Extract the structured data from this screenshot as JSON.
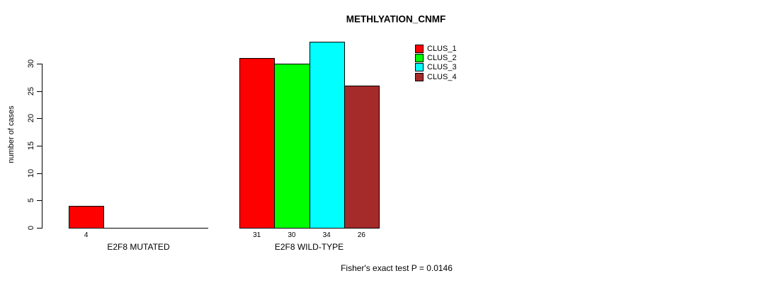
{
  "chart_data": {
    "type": "bar",
    "title": "METHLYATION_CNMF",
    "ylabel": "number of cases",
    "ylim": [
      0,
      34
    ],
    "yticks": [
      0,
      5,
      10,
      15,
      20,
      25,
      30
    ],
    "grid": false,
    "legend_position": "top-right",
    "groups": [
      {
        "label": "E2F8 MUTATED",
        "bars": [
          {
            "name": "CLUS_1",
            "value": 4,
            "color": "#FF0000"
          }
        ]
      },
      {
        "label": "E2F8 WILD-TYPE",
        "bars": [
          {
            "name": "CLUS_1",
            "value": 31,
            "color": "#FF0000"
          },
          {
            "name": "CLUS_2",
            "value": 30,
            "color": "#00FF00"
          },
          {
            "name": "CLUS_3",
            "value": 34,
            "color": "#00FFFF"
          },
          {
            "name": "CLUS_4",
            "value": 26,
            "color": "#A52A2A"
          }
        ]
      }
    ],
    "legend": [
      {
        "label": "CLUS_1",
        "color": "#FF0000"
      },
      {
        "label": "CLUS_2",
        "color": "#00FF00"
      },
      {
        "label": "CLUS_3",
        "color": "#00FFFF"
      },
      {
        "label": "CLUS_4",
        "color": "#A52A2A"
      }
    ],
    "annotation": "Fisher's exact test P = 0.0146",
    "colors": {
      "axis": "#000000",
      "background": "#FFFFFF"
    }
  }
}
